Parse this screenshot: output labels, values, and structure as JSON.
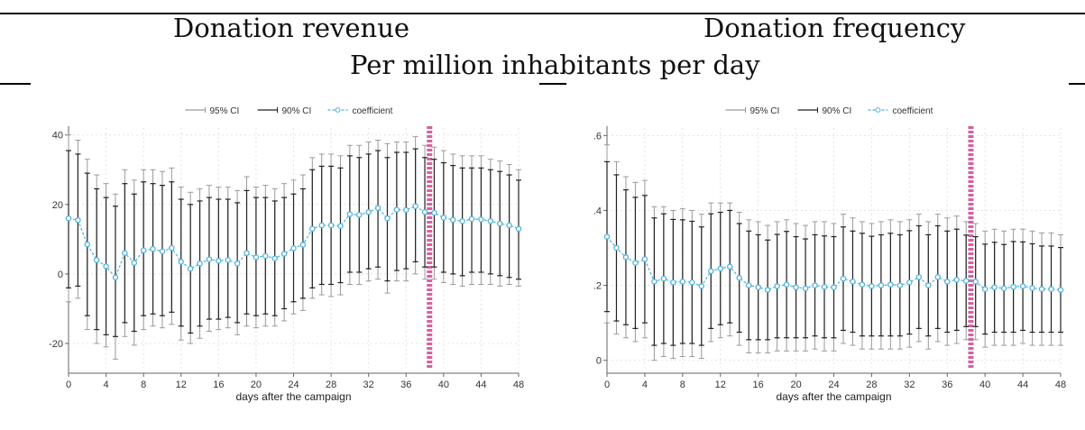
{
  "header": {
    "left_title": "Donation revenue",
    "right_title": "Donation frequency",
    "subtitle": "Per million inhabitants per day"
  },
  "colors": {
    "ci95": "#9a9a9a",
    "ci90": "#222222",
    "coef": "#4fb3dc",
    "marker": "#d9609e",
    "grid": "#e3e3e3"
  },
  "chart_data": [
    {
      "type": "line",
      "title": "Donation revenue",
      "xlabel": "days after the campaign",
      "ylabel": "",
      "x_ticks": [
        "0",
        "4",
        "8",
        "12",
        "16",
        "20",
        "24",
        "28",
        "32",
        "36",
        "40",
        "44",
        "48"
      ],
      "y_ticks": [
        "-20",
        "0",
        "20",
        "40"
      ],
      "xlim": [
        0,
        48
      ],
      "ylim": [
        -27,
        42
      ],
      "y_tick_values": [
        -20,
        0,
        20,
        40
      ],
      "grid": true,
      "legend": [
        "95% CI",
        "90% CI",
        "coefficient"
      ],
      "legend_position": "top-center",
      "vertical_marker_x": 38.5,
      "x": [
        0,
        1,
        2,
        3,
        4,
        5,
        6,
        7,
        8,
        9,
        10,
        11,
        12,
        13,
        14,
        15,
        16,
        17,
        18,
        19,
        20,
        21,
        22,
        23,
        24,
        25,
        26,
        27,
        28,
        29,
        30,
        31,
        32,
        33,
        34,
        35,
        36,
        37,
        38,
        39,
        40,
        41,
        42,
        43,
        44,
        45,
        46,
        47,
        48
      ],
      "series": [
        {
          "name": "coefficient",
          "values": [
            16,
            15.5,
            8.5,
            4,
            2.2,
            -1,
            6,
            3.2,
            6.8,
            7.2,
            6.5,
            7.5,
            3.5,
            1.5,
            3,
            4.2,
            3.8,
            4,
            3,
            6,
            4.8,
            5.2,
            4.5,
            5.8,
            7.4,
            8.4,
            13,
            14,
            14,
            13.8,
            17.2,
            17,
            17.8,
            19,
            16,
            18.5,
            18.4,
            19.5,
            17.8,
            17.6,
            16.2,
            15.6,
            15.2,
            15.8,
            15.7,
            15.2,
            14.5,
            14,
            13
          ]
        },
        {
          "name": "90% CI",
          "lower": [
            -4,
            -3.5,
            -12,
            -16,
            -17.5,
            -18,
            -14,
            -16.5,
            -12,
            -11.5,
            -12,
            -11,
            -15,
            -17,
            -15,
            -13,
            -13,
            -12.5,
            -14,
            -11.5,
            -12,
            -11.5,
            -12,
            -10,
            -8,
            -7,
            -4,
            -3,
            -3,
            -2.5,
            0.5,
            0.5,
            1.5,
            2,
            -2,
            1,
            1.5,
            3.5,
            2,
            2,
            0.5,
            0,
            -0.5,
            0.5,
            0.5,
            0,
            -0.5,
            -1,
            -1.5
          ],
          "upper": [
            35.5,
            34.5,
            29,
            24.5,
            22,
            19.5,
            26,
            23,
            26.5,
            26,
            25.5,
            26.5,
            21.5,
            20,
            21,
            22,
            21.5,
            21.5,
            20.5,
            24,
            22,
            22,
            21,
            22,
            23,
            24.5,
            30,
            31,
            31,
            30.5,
            34,
            33.5,
            34.5,
            35.5,
            33.5,
            35,
            35,
            36,
            33.5,
            33,
            32,
            31.2,
            30.5,
            30.5,
            30.5,
            30,
            29.5,
            28.5,
            27
          ]
        },
        {
          "name": "95% CI",
          "lower": [
            -8,
            -7,
            -16,
            -20,
            -21,
            -24.5,
            -18,
            -20.5,
            -16,
            -15,
            -15.5,
            -14.5,
            -19,
            -20,
            -18.5,
            -16.5,
            -16,
            -15.5,
            -17.5,
            -15,
            -15.5,
            -15,
            -15,
            -13.5,
            -11.5,
            -10.5,
            -7,
            -6,
            -6.5,
            -6,
            -3,
            -3,
            -2,
            -1.5,
            -5.5,
            -2,
            -2,
            0,
            -1.5,
            -1.5,
            -2.5,
            -3,
            -3.5,
            -3,
            -3,
            -3,
            -3.5,
            -3,
            -3.5
          ],
          "upper": [
            40,
            38.5,
            33,
            28.5,
            26,
            23,
            30,
            27,
            30,
            30,
            29.5,
            30.5,
            25,
            23.5,
            24.5,
            25.5,
            25,
            25,
            24,
            28,
            25,
            25.5,
            24.5,
            26,
            27,
            28.5,
            33.5,
            34.5,
            34.5,
            34,
            37,
            37,
            38,
            38.5,
            37.5,
            38,
            38,
            39.5,
            37,
            36.5,
            35.5,
            34.5,
            34,
            34,
            34,
            33,
            32.5,
            31.5,
            30
          ]
        }
      ]
    },
    {
      "type": "line",
      "title": "Donation frequency",
      "xlabel": "days after the campaign",
      "ylabel": "",
      "x_ticks": [
        "0",
        "4",
        "8",
        "12",
        "16",
        "20",
        "24",
        "28",
        "32",
        "36",
        "40",
        "44",
        "48"
      ],
      "y_ticks": [
        "0",
        ".2",
        ".4",
        ".6"
      ],
      "xlim": [
        0,
        48
      ],
      "ylim": [
        -0.02,
        0.62
      ],
      "y_tick_values": [
        0,
        0.2,
        0.4,
        0.6
      ],
      "grid": true,
      "legend": [
        "95% CI",
        "90% CI",
        "coefficient"
      ],
      "legend_position": "top-center",
      "vertical_marker_x": 38.5,
      "x": [
        0,
        1,
        2,
        3,
        4,
        5,
        6,
        7,
        8,
        9,
        10,
        11,
        12,
        13,
        14,
        15,
        16,
        17,
        18,
        19,
        20,
        21,
        22,
        23,
        24,
        25,
        26,
        27,
        28,
        29,
        30,
        31,
        32,
        33,
        34,
        35,
        36,
        37,
        38,
        39,
        40,
        41,
        42,
        43,
        44,
        45,
        46,
        47,
        48
      ],
      "series": [
        {
          "name": "coefficient",
          "values": [
            0.33,
            0.3,
            0.275,
            0.26,
            0.27,
            0.21,
            0.218,
            0.208,
            0.21,
            0.208,
            0.198,
            0.238,
            0.245,
            0.25,
            0.22,
            0.2,
            0.195,
            0.188,
            0.198,
            0.202,
            0.195,
            0.192,
            0.2,
            0.196,
            0.195,
            0.218,
            0.21,
            0.202,
            0.198,
            0.2,
            0.202,
            0.2,
            0.208,
            0.222,
            0.2,
            0.222,
            0.21,
            0.215,
            0.212,
            0.21,
            0.19,
            0.195,
            0.192,
            0.196,
            0.198,
            0.193,
            0.19,
            0.19,
            0.188
          ]
        },
        {
          "name": "90% CI",
          "lower": [
            0.13,
            0.105,
            0.095,
            0.085,
            0.1,
            0.04,
            0.045,
            0.04,
            0.045,
            0.045,
            0.04,
            0.085,
            0.095,
            0.1,
            0.075,
            0.055,
            0.055,
            0.055,
            0.06,
            0.06,
            0.06,
            0.06,
            0.065,
            0.06,
            0.06,
            0.08,
            0.075,
            0.065,
            0.065,
            0.065,
            0.065,
            0.065,
            0.07,
            0.085,
            0.065,
            0.085,
            0.075,
            0.08,
            0.09,
            0.09,
            0.07,
            0.075,
            0.075,
            0.075,
            0.08,
            0.075,
            0.075,
            0.075,
            0.075
          ]
        },
        {
          "name": "95% CI",
          "lower": [
            0.1,
            0.07,
            0.06,
            0.05,
            0.06,
            0.0,
            0.01,
            0.005,
            0.01,
            0.01,
            0.005,
            0.05,
            0.06,
            0.065,
            0.04,
            0.02,
            0.02,
            0.02,
            0.025,
            0.025,
            0.025,
            0.025,
            0.03,
            0.025,
            0.025,
            0.045,
            0.04,
            0.03,
            0.03,
            0.03,
            0.03,
            0.03,
            0.035,
            0.05,
            0.03,
            0.05,
            0.04,
            0.045,
            0.055,
            0.055,
            0.035,
            0.04,
            0.04,
            0.04,
            0.045,
            0.04,
            0.04,
            0.04,
            0.04
          ],
          "upper": [
            0.575,
            0.53,
            0.49,
            0.475,
            0.48,
            0.41,
            0.41,
            0.4,
            0.405,
            0.4,
            0.39,
            0.42,
            0.42,
            0.42,
            0.395,
            0.375,
            0.37,
            0.36,
            0.37,
            0.375,
            0.365,
            0.36,
            0.37,
            0.37,
            0.365,
            0.39,
            0.38,
            0.37,
            0.365,
            0.37,
            0.375,
            0.37,
            0.375,
            0.39,
            0.37,
            0.39,
            0.38,
            0.385,
            0.37,
            0.365,
            0.345,
            0.35,
            0.345,
            0.35,
            0.35,
            0.345,
            0.34,
            0.34,
            0.335
          ]
        }
      ]
    }
  ]
}
